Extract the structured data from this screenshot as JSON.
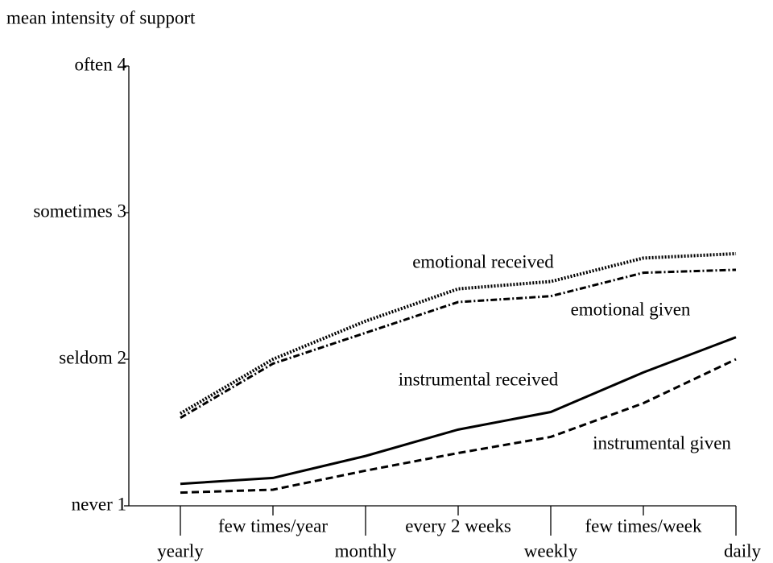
{
  "chart_data": {
    "type": "line",
    "y_label": "mean intensity of support",
    "categories": [
      "yearly",
      "few times/year",
      "monthly",
      "every 2 weeks",
      "weekly",
      "few times/week",
      "daily"
    ],
    "ylim": [
      1,
      4
    ],
    "yticks": [
      {
        "value": 1,
        "label": "never  1"
      },
      {
        "value": 2,
        "label": "seldom  2"
      },
      {
        "value": 3,
        "label": "sometimes 3"
      },
      {
        "value": 4,
        "label": "often 4"
      }
    ],
    "series": [
      {
        "name": "emotional received",
        "color": "#000000",
        "dash": "dotted",
        "values": [
          1.63,
          2.0,
          2.26,
          2.48,
          2.53,
          2.69,
          2.72
        ]
      },
      {
        "name": "emotional given",
        "color": "#000000",
        "dash": "dashdot",
        "values": [
          1.6,
          1.97,
          2.18,
          2.39,
          2.43,
          2.59,
          2.61
        ]
      },
      {
        "name": "instrumental received",
        "color": "#000000",
        "dash": "solid",
        "values": [
          1.15,
          1.19,
          1.34,
          1.52,
          1.64,
          1.91,
          2.15
        ]
      },
      {
        "name": "instrumental given",
        "color": "#000000",
        "dash": "dashed",
        "values": [
          1.09,
          1.11,
          1.24,
          1.36,
          1.47,
          1.7,
          2.0
        ]
      }
    ]
  }
}
